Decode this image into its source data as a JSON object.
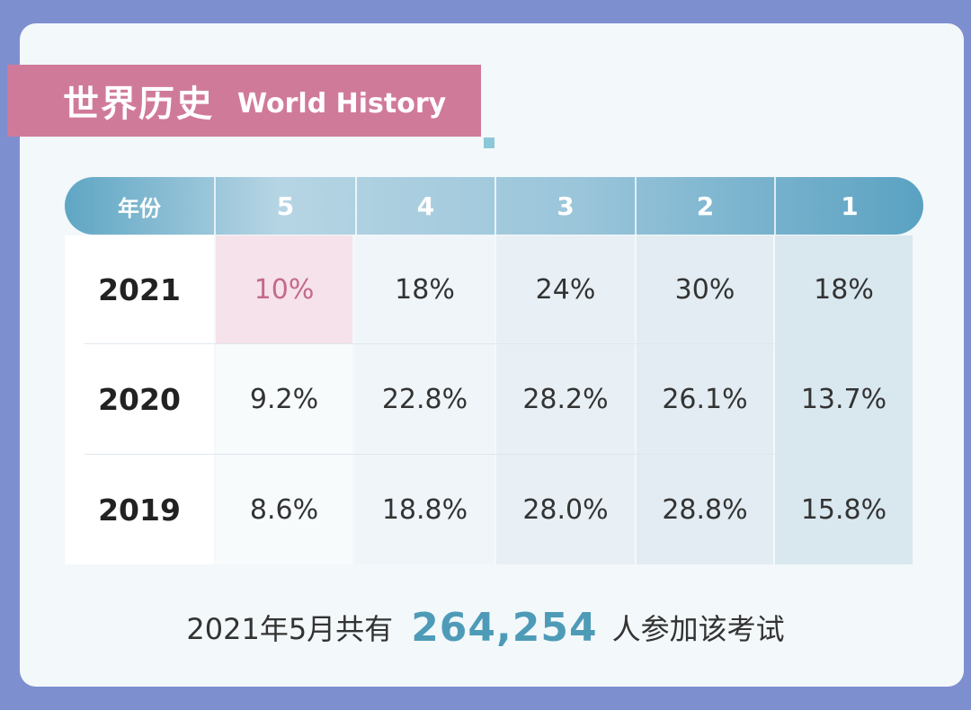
{
  "title": {
    "cn": "世界历史",
    "en": "World History"
  },
  "table": {
    "header_label": "年份",
    "columns": [
      "5",
      "4",
      "3",
      "2",
      "1"
    ],
    "rows": [
      {
        "year": "2021",
        "values": [
          "10%",
          "18%",
          "24%",
          "30%",
          "18%"
        ]
      },
      {
        "year": "2020",
        "values": [
          "9.2%",
          "22.8%",
          "28.2%",
          "26.1%",
          "13.7%"
        ]
      },
      {
        "year": "2019",
        "values": [
          "8.6%",
          "18.8%",
          "28.0%",
          "28.8%",
          "15.8%"
        ]
      }
    ]
  },
  "footer": {
    "prefix": "2021年5月共有",
    "count": "264,254",
    "suffix": "人参加该考试"
  },
  "colors": {
    "background": "#7e8fd0",
    "banner": "#d07a9a",
    "accent": "#4e9bb8",
    "highlight": "#c46a8c"
  },
  "chart_data": {
    "type": "table",
    "title": "世界历史 World History",
    "columns": [
      "年份",
      "5",
      "4",
      "3",
      "2",
      "1"
    ],
    "rows": [
      [
        "2021",
        "10%",
        "18%",
        "24%",
        "30%",
        "18%"
      ],
      [
        "2020",
        "9.2%",
        "22.8%",
        "28.2%",
        "26.1%",
        "13.7%"
      ],
      [
        "2019",
        "8.6%",
        "18.8%",
        "28.0%",
        "28.8%",
        "15.8%"
      ]
    ]
  }
}
